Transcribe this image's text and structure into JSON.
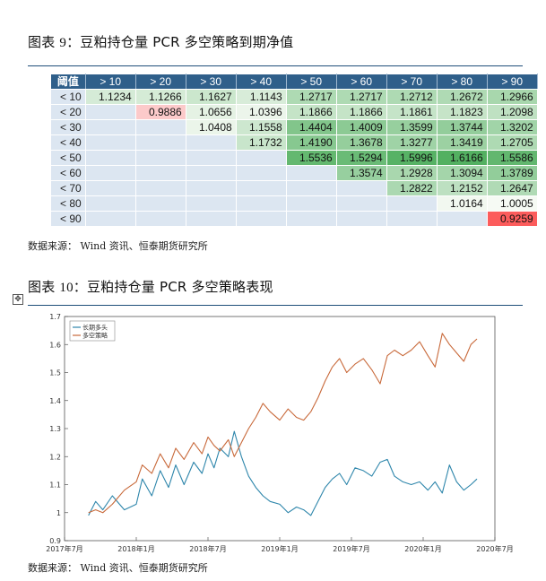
{
  "figure1": {
    "label": "图表 ",
    "num": "9",
    "title": "：豆粕持仓量 PCR 多空策略到期净值",
    "source": "数据来源：  Wind 资讯、恒泰期货研究所",
    "table": {
      "corner": "阈值",
      "columns": [
        "> 10",
        "> 20",
        "> 30",
        "> 40",
        "> 50",
        "> 60",
        "> 70",
        "> 80",
        "> 90"
      ],
      "rows": [
        {
          "label": "< 10",
          "cells": [
            "1.1234",
            "1.1266",
            "1.1627",
            "1.1143",
            "1.2717",
            "1.2717",
            "1.2712",
            "1.2672",
            "1.2966"
          ]
        },
        {
          "label": "< 20",
          "cells": [
            "",
            "0.9886",
            "1.0656",
            "1.0396",
            "1.1866",
            "1.1866",
            "1.1861",
            "1.1823",
            "1.2098"
          ]
        },
        {
          "label": "< 30",
          "cells": [
            "",
            "",
            "1.0408",
            "1.1558",
            "1.4404",
            "1.4009",
            "1.3599",
            "1.3744",
            "1.3202"
          ]
        },
        {
          "label": "< 40",
          "cells": [
            "",
            "",
            "",
            "1.1732",
            "1.4190",
            "1.3678",
            "1.3277",
            "1.3419",
            "1.2705"
          ]
        },
        {
          "label": "< 50",
          "cells": [
            "",
            "",
            "",
            "",
            "1.5536",
            "1.5294",
            "1.5996",
            "1.6166",
            "1.5586"
          ]
        },
        {
          "label": "< 60",
          "cells": [
            "",
            "",
            "",
            "",
            "",
            "1.3574",
            "1.2928",
            "1.3094",
            "1.3789"
          ]
        },
        {
          "label": "< 70",
          "cells": [
            "",
            "",
            "",
            "",
            "",
            "",
            "1.2822",
            "1.2152",
            "1.2647"
          ]
        },
        {
          "label": "< 80",
          "cells": [
            "",
            "",
            "",
            "",
            "",
            "",
            "",
            "1.0164",
            "1.0005"
          ]
        },
        {
          "label": "< 90",
          "cells": [
            "",
            "",
            "",
            "",
            "",
            "",
            "",
            "",
            "0.9259"
          ]
        }
      ]
    }
  },
  "figure2": {
    "label": "图表 ",
    "num": "10",
    "title": "：豆粕持仓量 PCR 多空策略表现",
    "source": "数据来源：  Wind 资讯、恒泰期货研究所"
  },
  "colors": {
    "header": "#2f5f8a",
    "rowhead": "#dce6f1",
    "series_long": "#2e86ab",
    "series_ls": "#c8693a"
  },
  "chart_data": {
    "type": "line",
    "ylim": [
      0.9,
      1.7
    ],
    "yticks": [
      "0.9",
      "1",
      "1.1",
      "1.2",
      "1.3",
      "1.4",
      "1.5",
      "1.6",
      "1.7"
    ],
    "xticks": [
      "2017年7月",
      "2018年1月",
      "2018年7月",
      "2019年1月",
      "2019年7月",
      "2020年1月",
      "2020年7月"
    ],
    "xlim": [
      0,
      36
    ],
    "series": [
      {
        "name": "长期多头",
        "color": "#2e86ab",
        "x": [
          2,
          2.6,
          3.2,
          4,
          5,
          6,
          6.5,
          7.3,
          8,
          8.7,
          9.3,
          10,
          10.8,
          11.5,
          12,
          12.5,
          13,
          13.7,
          14.2,
          14.8,
          15.4,
          16,
          16.6,
          17.2,
          18,
          18.7,
          19.4,
          20,
          20.6,
          21.2,
          21.8,
          22.4,
          23,
          23.6,
          24.3,
          25,
          25.7,
          26.4,
          27,
          27.6,
          28.3,
          29,
          29.7,
          30.4,
          31,
          31.6,
          32.2,
          32.8,
          33.4,
          34,
          34.5
        ],
        "y": [
          0.99,
          1.04,
          1.01,
          1.06,
          1.01,
          1.03,
          1.12,
          1.06,
          1.15,
          1.09,
          1.17,
          1.1,
          1.18,
          1.14,
          1.21,
          1.16,
          1.23,
          1.2,
          1.29,
          1.2,
          1.13,
          1.09,
          1.06,
          1.04,
          1.03,
          1.0,
          1.02,
          1.01,
          0.99,
          1.04,
          1.09,
          1.12,
          1.14,
          1.1,
          1.16,
          1.15,
          1.13,
          1.18,
          1.19,
          1.13,
          1.11,
          1.1,
          1.11,
          1.08,
          1.11,
          1.07,
          1.17,
          1.11,
          1.08,
          1.1,
          1.12
        ]
      },
      {
        "name": "多空策略",
        "color": "#c8693a",
        "x": [
          2,
          2.6,
          3.2,
          4,
          5,
          6,
          6.5,
          7.3,
          8,
          8.7,
          9.3,
          10,
          10.8,
          11.5,
          12,
          12.5,
          13,
          13.7,
          14.2,
          14.8,
          15.4,
          16,
          16.6,
          17.2,
          18,
          18.7,
          19.4,
          20,
          20.6,
          21.2,
          21.8,
          22.4,
          23,
          23.6,
          24.3,
          25,
          25.7,
          26.4,
          27,
          27.6,
          28.3,
          29,
          29.7,
          30.4,
          31,
          31.6,
          32.2,
          32.8,
          33.4,
          34,
          34.5
        ],
        "y": [
          1.0,
          1.01,
          1.0,
          1.03,
          1.08,
          1.11,
          1.17,
          1.14,
          1.21,
          1.16,
          1.23,
          1.19,
          1.25,
          1.21,
          1.27,
          1.24,
          1.22,
          1.26,
          1.2,
          1.25,
          1.3,
          1.34,
          1.39,
          1.36,
          1.33,
          1.37,
          1.34,
          1.33,
          1.36,
          1.41,
          1.47,
          1.52,
          1.55,
          1.5,
          1.53,
          1.55,
          1.51,
          1.46,
          1.56,
          1.58,
          1.56,
          1.58,
          1.61,
          1.56,
          1.52,
          1.64,
          1.6,
          1.57,
          1.54,
          1.6,
          1.62
        ]
      }
    ]
  }
}
